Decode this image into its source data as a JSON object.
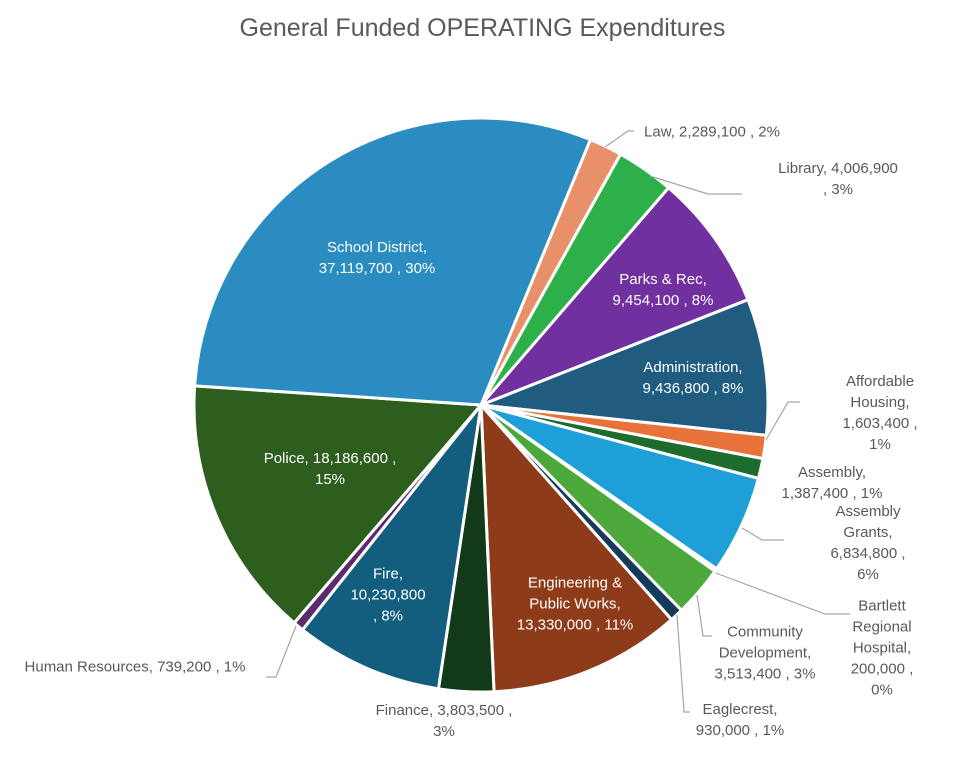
{
  "chart_data": {
    "type": "pie",
    "title": "General Funded OPERATING Expenditures",
    "slices": [
      {
        "label": "Law",
        "value": 2289100,
        "percent": "2%",
        "text": "Law,  2,289,100 , 2%",
        "color": "#E8906A"
      },
      {
        "label": "Library",
        "value": 4006900,
        "percent": "3%",
        "text": "Library,  4,006,900 , 3%",
        "color": "#2DB04A"
      },
      {
        "label": "Parks & Rec",
        "value": 9454100,
        "percent": "8%",
        "text": "Parks & Rec,\n9,454,100 , 8%",
        "color": "#7030A0"
      },
      {
        "label": "Administration",
        "value": 9436800,
        "percent": "8%",
        "text": "Administration,\n9,436,800 , 8%",
        "color": "#1F5C80"
      },
      {
        "label": "Affordable Housing",
        "value": 1603400,
        "percent": "1%",
        "text": "Affordable Housing,\n1,603,400 , 1%",
        "color": "#E8733A"
      },
      {
        "label": "Assembly",
        "value": 1387400,
        "percent": "1%",
        "text": "Assembly,\n1,387,400 , 1%",
        "color": "#1E6B2E"
      },
      {
        "label": "Assembly Grants",
        "value": 6834800,
        "percent": "6%",
        "text": "Assembly Grants,\n6,834,800 , 6%",
        "color": "#1E9FD8"
      },
      {
        "label": "Bartlett Regional Hospital",
        "value": 200000,
        "percent": "0%",
        "text": "Bartlett\nRegional\nHospital,\n200,000 , 0%",
        "color": "#D9D9D9"
      },
      {
        "label": "Community Development",
        "value": 3513400,
        "percent": "3%",
        "text": "Community\nDevelopment,\n3,513,400 , 3%",
        "color": "#4CA83A"
      },
      {
        "label": "Eaglecrest",
        "value": 930000,
        "percent": "1%",
        "text": "Eaglecrest,\n930,000 , 1%",
        "color": "#163A5A"
      },
      {
        "label": "Engineering & Public Works",
        "value": 13330000,
        "percent": "11%",
        "text": "Engineering &\nPublic Works,\n13,330,000 , 11%",
        "color": "#8E3B1A"
      },
      {
        "label": "Finance",
        "value": 3803500,
        "percent": "3%",
        "text": "Finance,  3,803,500 ,\n3%",
        "color": "#123A18"
      },
      {
        "label": "Fire",
        "value": 10230800,
        "percent": "8%",
        "text": "Fire,\n10,230,800\n, 8%",
        "color": "#135E7E"
      },
      {
        "label": "Human Resources",
        "value": 739200,
        "percent": "1%",
        "text": "Human Resources,  739,200 , 1%",
        "color": "#5C2A6E"
      },
      {
        "label": "Police",
        "value": 18186600,
        "percent": "15%",
        "text": "Police,  18,186,600 ,\n15%",
        "color": "#2D5E1E"
      },
      {
        "label": "School District",
        "value": 37119700,
        "percent": "30%",
        "text": "School District,\n37,119,700 , 30%",
        "color": "#2A8CC0"
      }
    ],
    "legend": "none"
  }
}
